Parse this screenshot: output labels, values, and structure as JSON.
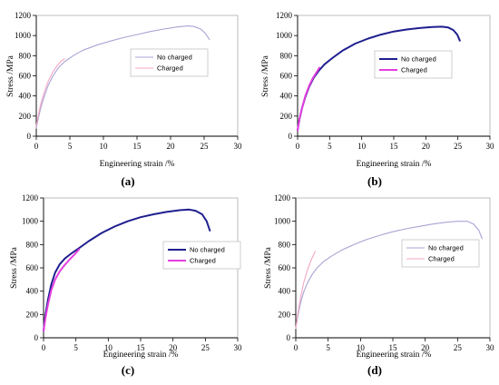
{
  "figure": {
    "panels": [
      {
        "label": "(a)"
      },
      {
        "label": "(b)"
      },
      {
        "label": "(c)"
      },
      {
        "label": "(d)"
      }
    ]
  },
  "chart_data": [
    {
      "type": "line",
      "panel_label": "(a)",
      "xlabel": "Engineering strain /%",
      "ylabel": "Stress /MPa",
      "xlim": [
        0,
        30
      ],
      "ylim": [
        0,
        1200
      ],
      "xticks": [
        "0",
        "5",
        "10",
        "15",
        "20",
        "25",
        "30"
      ],
      "yticks": [
        "0",
        "200",
        "400",
        "600",
        "800",
        "1000",
        "1200"
      ],
      "grid": false,
      "legend_position": "right-middle",
      "series": [
        {
          "name": "No charged",
          "color": "#a9a3d4",
          "width": 1.1,
          "x": [
            0,
            0.3,
            0.7,
            1.2,
            1.8,
            2.5,
            3.3,
            4.2,
            5.5,
            7,
            9,
            11,
            13,
            15,
            17,
            19,
            21,
            22.5,
            23.5,
            24.5,
            25.2,
            25.8
          ],
          "y": [
            80,
            180,
            290,
            400,
            510,
            600,
            680,
            740,
            800,
            855,
            905,
            945,
            980,
            1010,
            1040,
            1065,
            1085,
            1095,
            1090,
            1065,
            1020,
            960
          ]
        },
        {
          "name": "Charged",
          "color": "#f4a7c5",
          "width": 1.1,
          "x": [
            0,
            0.3,
            0.7,
            1.2,
            1.8,
            2.4,
            3,
            3.6,
            4.2
          ],
          "y": [
            100,
            210,
            330,
            440,
            550,
            630,
            690,
            740,
            770
          ]
        }
      ]
    },
    {
      "type": "line",
      "panel_label": "(b)",
      "xlabel": "Engineering strain /%",
      "ylabel": "Stress /MPa",
      "xlim": [
        0,
        30
      ],
      "ylim": [
        0,
        1200
      ],
      "xticks": [
        "0",
        "5",
        "10",
        "15",
        "20",
        "25",
        "30"
      ],
      "yticks": [
        "0",
        "200",
        "400",
        "600",
        "800",
        "1000",
        "1200"
      ],
      "grid": false,
      "legend_position": "right-middle",
      "series": [
        {
          "name": "No charged",
          "color": "#1f1f8f",
          "width": 2,
          "x": [
            0,
            0.3,
            0.7,
            1.2,
            1.8,
            2.5,
            3.3,
            4.2,
            5.5,
            7,
            9,
            11,
            13,
            15,
            17,
            19,
            21,
            22.5,
            23.5,
            24.3,
            24.9,
            25.3
          ],
          "y": [
            60,
            170,
            280,
            390,
            490,
            580,
            650,
            715,
            780,
            850,
            920,
            970,
            1010,
            1040,
            1060,
            1075,
            1085,
            1088,
            1080,
            1055,
            1010,
            950
          ]
        },
        {
          "name": "Charged",
          "color": "#e33ee0",
          "width": 2,
          "x": [
            0,
            0.3,
            0.7,
            1.2,
            1.8,
            2.4,
            3,
            3.4
          ],
          "y": [
            60,
            170,
            280,
            400,
            500,
            580,
            640,
            680
          ]
        }
      ]
    },
    {
      "type": "line",
      "panel_label": "(c)",
      "xlabel": "Engineering strain /%",
      "ylabel": "Stress /MPa",
      "xlim": [
        0,
        30
      ],
      "ylim": [
        0,
        1200
      ],
      "xticks": [
        "0",
        "5",
        "10",
        "15",
        "20",
        "25",
        "30"
      ],
      "yticks": [
        "0",
        "200",
        "400",
        "600",
        "800",
        "1000",
        "1200"
      ],
      "grid": false,
      "legend_position": "right-middle",
      "series": [
        {
          "name": "No charged",
          "color": "#1f1f8f",
          "width": 2,
          "x": [
            0,
            0.3,
            0.7,
            1.2,
            1.8,
            2.5,
            3.3,
            4.2,
            5.5,
            7,
            9,
            11,
            13,
            15,
            17,
            19,
            21,
            22.5,
            23.5,
            24.5,
            25.2,
            25.7
          ],
          "y": [
            60,
            200,
            330,
            460,
            560,
            630,
            680,
            720,
            770,
            830,
            900,
            955,
            1000,
            1035,
            1060,
            1080,
            1095,
            1100,
            1090,
            1060,
            1000,
            920
          ]
        },
        {
          "name": "Charged",
          "color": "#e33ee0",
          "width": 2,
          "x": [
            0,
            0.3,
            0.7,
            1.2,
            1.8,
            2.5,
            3.2,
            4,
            4.8,
            5.5
          ],
          "y": [
            60,
            170,
            290,
            410,
            500,
            570,
            620,
            670,
            715,
            760
          ]
        }
      ]
    },
    {
      "type": "line",
      "panel_label": "(d)",
      "xlabel": "Engineering strain /%",
      "ylabel": "Stress /MPa",
      "xlim": [
        0,
        30
      ],
      "ylim": [
        0,
        1200
      ],
      "xticks": [
        "0",
        "5",
        "10",
        "15",
        "20",
        "25",
        "30"
      ],
      "yticks": [
        "0",
        "200",
        "400",
        "600",
        "800",
        "1000",
        "1200"
      ],
      "grid": false,
      "legend_position": "right-middle",
      "series": [
        {
          "name": "No charged",
          "color": "#a9a3d4",
          "width": 1.1,
          "x": [
            0,
            0.3,
            0.7,
            1.2,
            1.8,
            2.5,
            3.3,
            4.2,
            5.5,
            7,
            9,
            11,
            13,
            15,
            17,
            19,
            21,
            23,
            25,
            26.5,
            27.5,
            28.3,
            28.8
          ],
          "y": [
            80,
            180,
            290,
            390,
            470,
            540,
            600,
            650,
            700,
            750,
            800,
            845,
            880,
            910,
            935,
            955,
            975,
            990,
            1000,
            1000,
            975,
            920,
            850
          ]
        },
        {
          "name": "Charged",
          "color": "#f4a7c5",
          "width": 1.1,
          "x": [
            0,
            0.3,
            0.7,
            1.2,
            1.8,
            2.4,
            3
          ],
          "y": [
            80,
            200,
            330,
            470,
            580,
            670,
            740
          ]
        }
      ]
    }
  ]
}
